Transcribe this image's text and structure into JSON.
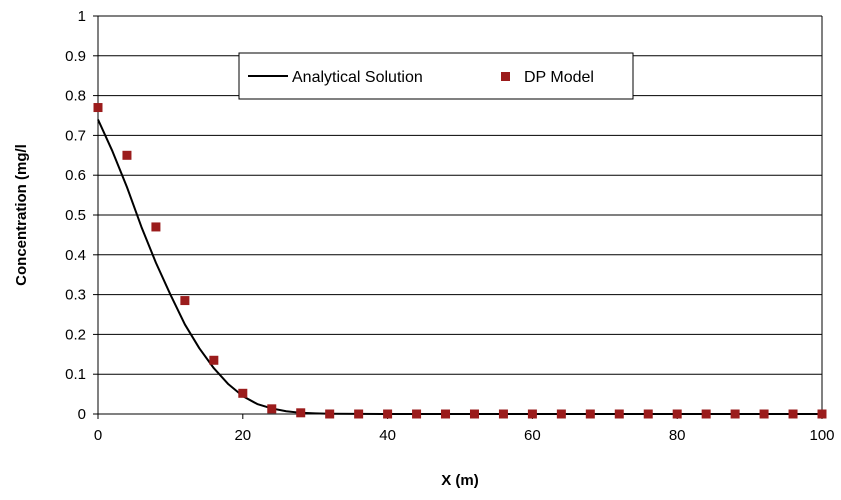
{
  "chart_data": {
    "type": "line",
    "title": "",
    "xlabel": "X (m)",
    "ylabel": "Concentration (mg/l",
    "xlim": [
      0,
      100
    ],
    "ylim": [
      0,
      1
    ],
    "x_ticks": [
      "0",
      "20",
      "40",
      "60",
      "80",
      "100"
    ],
    "y_ticks": [
      "0",
      "0.1",
      "0.2",
      "0.3",
      "0.4",
      "0.5",
      "0.6",
      "0.7",
      "0.8",
      "0.9",
      "1"
    ],
    "grid": "horizontal",
    "legend_position": "top-center",
    "series": [
      {
        "name": "Analytical Solution",
        "kind": "line",
        "color": "#000000",
        "x": [
          0,
          2,
          4,
          6,
          8,
          10,
          12,
          14,
          16,
          18,
          20,
          22,
          24,
          26,
          28,
          30,
          32,
          36,
          40,
          100
        ],
        "y": [
          0.74,
          0.66,
          0.57,
          0.47,
          0.38,
          0.3,
          0.225,
          0.165,
          0.115,
          0.075,
          0.045,
          0.025,
          0.014,
          0.007,
          0.003,
          0.0015,
          0.0007,
          0.0002,
          0,
          0
        ]
      },
      {
        "name": "DP Model",
        "kind": "scatter",
        "color": "#9b1c1c",
        "x": [
          0,
          4,
          8,
          12,
          16,
          20,
          24,
          28,
          32,
          36,
          40,
          44,
          48,
          52,
          56,
          60,
          64,
          68,
          72,
          76,
          80,
          84,
          88,
          92,
          96,
          100
        ],
        "y": [
          0.77,
          0.65,
          0.47,
          0.285,
          0.135,
          0.052,
          0.013,
          0.003,
          0,
          0,
          0,
          0,
          0,
          0,
          0,
          0,
          0,
          0,
          0,
          0,
          0,
          0,
          0,
          0,
          0,
          0
        ]
      }
    ]
  }
}
